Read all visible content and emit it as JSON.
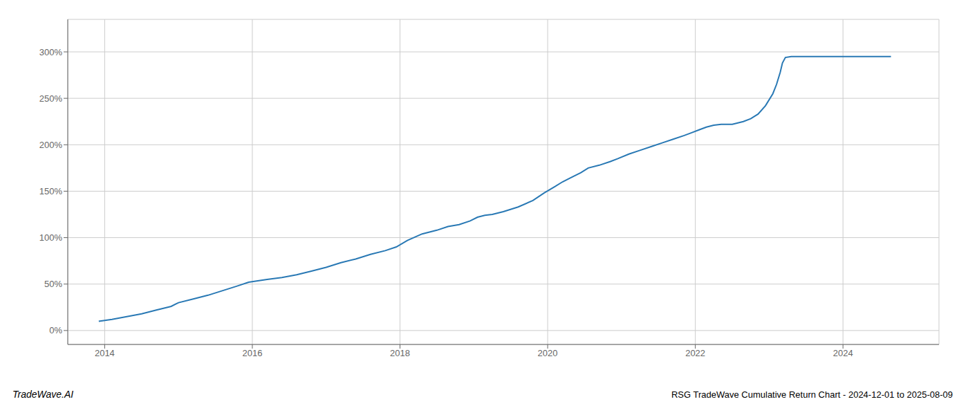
{
  "chart_data": {
    "type": "line",
    "x": [
      2013.92,
      2014.1,
      2014.3,
      2014.5,
      2014.7,
      2014.9,
      2015.0,
      2015.2,
      2015.4,
      2015.6,
      2015.8,
      2015.95,
      2016.2,
      2016.4,
      2016.6,
      2016.8,
      2017.0,
      2017.2,
      2017.4,
      2017.6,
      2017.8,
      2017.95,
      2018.1,
      2018.3,
      2018.5,
      2018.65,
      2018.8,
      2018.95,
      2019.05,
      2019.15,
      2019.25,
      2019.4,
      2019.6,
      2019.8,
      2019.95,
      2020.1,
      2020.2,
      2020.3,
      2020.45,
      2020.55,
      2020.7,
      2020.85,
      2020.95,
      2021.1,
      2021.25,
      2021.4,
      2021.55,
      2021.7,
      2021.85,
      2021.95,
      2022.05,
      2022.15,
      2022.25,
      2022.35,
      2022.5,
      2022.65,
      2022.75,
      2022.85,
      2022.95,
      2023.05,
      2023.1,
      2023.15,
      2023.18,
      2023.22,
      2023.3,
      2023.5,
      2023.7,
      2023.9,
      2024.0,
      2024.15,
      2024.3,
      2024.5,
      2024.65
    ],
    "values": [
      10,
      12,
      15,
      18,
      22,
      26,
      30,
      34,
      38,
      43,
      48,
      52,
      55,
      57,
      60,
      64,
      68,
      73,
      77,
      82,
      86,
      90,
      97,
      104,
      108,
      112,
      114,
      118,
      122,
      124,
      125,
      128,
      133,
      140,
      148,
      155,
      160,
      164,
      170,
      175,
      178,
      182,
      185,
      190,
      194,
      198,
      202,
      206,
      210,
      213,
      216,
      219,
      221,
      222,
      222,
      225,
      228,
      233,
      242,
      255,
      265,
      278,
      288,
      294,
      295,
      295,
      295,
      295,
      295,
      295,
      295,
      295,
      295
    ],
    "color": "#2878b4",
    "xlim": [
      2013.5,
      2025.3
    ],
    "xticks": [
      2014,
      2016,
      2018,
      2020,
      2022,
      2024
    ],
    "ylim": [
      -15,
      335
    ],
    "yticks": [
      {
        "value": 0,
        "label": "0%"
      },
      {
        "value": 50,
        "label": "50%"
      },
      {
        "value": 100,
        "label": "100%"
      },
      {
        "value": 150,
        "label": "150%"
      },
      {
        "value": 200,
        "label": "200%"
      },
      {
        "value": 250,
        "label": "250%"
      },
      {
        "value": 300,
        "label": "300%"
      }
    ],
    "grid": true,
    "annotations": [
      "TradeWave.AI",
      "RSG TradeWave Cumulative Return Chart - 2024-12-01 to 2025-08-09"
    ]
  }
}
